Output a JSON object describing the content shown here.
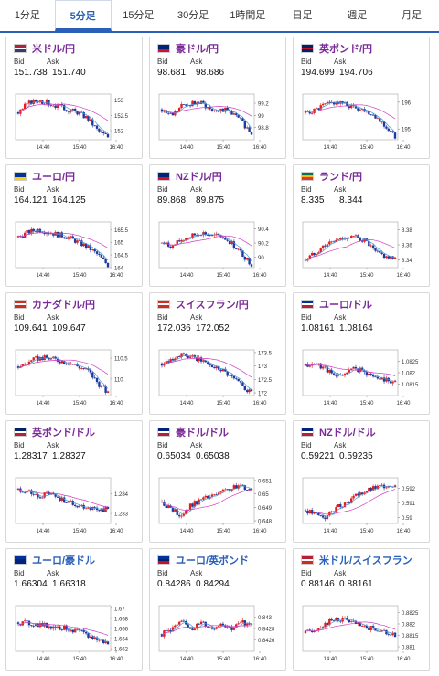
{
  "tabs": [
    {
      "label": "1分足",
      "active": false
    },
    {
      "label": "5分足",
      "active": true
    },
    {
      "label": "15分足",
      "active": false
    },
    {
      "label": "30分足",
      "active": false
    },
    {
      "label": "1時間足",
      "active": false
    },
    {
      "label": "日足",
      "active": false
    },
    {
      "label": "週足",
      "active": false
    },
    {
      "label": "月足",
      "active": false
    }
  ],
  "labels": {
    "bid": "Bid",
    "ask": "Ask"
  },
  "pairs": [
    {
      "name": "米ドル/円",
      "bid": "151.738",
      "ask": "151.740",
      "flag": [
        "#b22234",
        "#ffffff",
        "#3c3b6e"
      ],
      "color": "#7a2a98",
      "chart_data": {
        "type": "candlestick",
        "x_ticks": [
          "14:40",
          "15:40",
          "16:40"
        ],
        "y_ticks": [
          "153",
          "152.5",
          "152"
        ],
        "ylim": [
          151.7,
          153.2
        ],
        "trend": [
          152.6,
          152.9,
          153.0,
          152.9,
          152.8,
          152.7,
          152.6,
          152.4,
          152.0,
          151.8
        ]
      }
    },
    {
      "name": "豪ドル/円",
      "bid": "98.681",
      "ask": "98.686",
      "flag": [
        "#00247d",
        "#00247d",
        "#cf142b"
      ],
      "color": "#7a2a98",
      "chart_data": {
        "type": "candlestick",
        "x_ticks": [
          "14:40",
          "15:40",
          "16:40"
        ],
        "y_ticks": [
          "99.2",
          "99",
          "98.8"
        ],
        "ylim": [
          98.6,
          99.35
        ],
        "trend": [
          99.1,
          99.0,
          99.15,
          99.2,
          99.2,
          99.1,
          99.1,
          99.05,
          98.9,
          98.7
        ]
      }
    },
    {
      "name": "英ポンド/円",
      "bid": "194.699",
      "ask": "194.706",
      "flag": [
        "#012169",
        "#c8102e",
        "#012169"
      ],
      "color": "#7a2a98",
      "chart_data": {
        "type": "candlestick",
        "x_ticks": [
          "14:40",
          "15:40",
          "16:40"
        ],
        "y_ticks": [
          "196",
          "195"
        ],
        "ylim": [
          194.6,
          196.3
        ],
        "trend": [
          195.6,
          195.7,
          195.9,
          196.0,
          195.9,
          195.8,
          195.7,
          195.5,
          195.1,
          194.7
        ]
      }
    },
    {
      "name": "ユーロ/円",
      "bid": "164.121",
      "ask": "164.125",
      "flag": [
        "#003399",
        "#003399",
        "#ffcc00"
      ],
      "color": "#7a2a98",
      "chart_data": {
        "type": "candlestick",
        "x_ticks": [
          "14:40",
          "15:40",
          "16:40"
        ],
        "y_ticks": [
          "165.5",
          "165",
          "164.5",
          "164"
        ],
        "ylim": [
          164.0,
          165.8
        ],
        "trend": [
          165.2,
          165.4,
          165.5,
          165.4,
          165.3,
          165.2,
          165.0,
          164.8,
          164.5,
          164.1
        ]
      }
    },
    {
      "name": "NZドル/円",
      "bid": "89.868",
      "ask": "89.875",
      "flag": [
        "#00247d",
        "#00247d",
        "#cc142b"
      ],
      "color": "#7a2a98",
      "chart_data": {
        "type": "candlestick",
        "x_ticks": [
          "14:40",
          "15:40",
          "16:40"
        ],
        "y_ticks": [
          "90.4",
          "90.2",
          "90"
        ],
        "ylim": [
          89.85,
          90.5
        ],
        "trend": [
          90.2,
          90.15,
          90.25,
          90.3,
          90.35,
          90.3,
          90.3,
          90.2,
          90.05,
          89.9
        ]
      }
    },
    {
      "name": "ランド/円",
      "bid": "8.335",
      "ask": "8.344",
      "flag": [
        "#007a4d",
        "#ffb612",
        "#de3831"
      ],
      "color": "#7a2a98",
      "chart_data": {
        "type": "candlestick",
        "x_ticks": [
          "14:40",
          "15:40",
          "16:40"
        ],
        "y_ticks": [
          "8.38",
          "8.36",
          "8.34"
        ],
        "ylim": [
          8.33,
          8.39
        ],
        "trend": [
          8.34,
          8.35,
          8.36,
          8.365,
          8.37,
          8.37,
          8.365,
          8.35,
          8.345,
          8.34
        ]
      }
    },
    {
      "name": "カナダドル/円",
      "bid": "109.641",
      "ask": "109.647",
      "flag": [
        "#d52b1e",
        "#ffffff",
        "#d52b1e"
      ],
      "color": "#7a2a98",
      "chart_data": {
        "type": "candlestick",
        "x_ticks": [
          "14:40",
          "15:40",
          "16:40"
        ],
        "y_ticks": [
          "110.5",
          "110"
        ],
        "ylim": [
          109.6,
          110.7
        ],
        "trend": [
          110.3,
          110.4,
          110.5,
          110.5,
          110.45,
          110.4,
          110.3,
          110.2,
          109.9,
          109.65
        ]
      }
    },
    {
      "name": "スイスフラン/円",
      "bid": "172.036",
      "ask": "172.052",
      "flag": [
        "#d52b1e",
        "#ffffff",
        "#d52b1e"
      ],
      "color": "#7a2a98",
      "chart_data": {
        "type": "candlestick",
        "x_ticks": [
          "14:40",
          "15:40",
          "16:40"
        ],
        "y_ticks": [
          "173.5",
          "173",
          "172.5",
          "172"
        ],
        "ylim": [
          171.9,
          173.6
        ],
        "trend": [
          173.1,
          173.3,
          173.4,
          173.3,
          173.2,
          173.0,
          172.9,
          172.6,
          172.3,
          172.0
        ]
      }
    },
    {
      "name": "ユーロ/ドル",
      "bid": "1.08161",
      "ask": "1.08164",
      "flag": [
        "#003399",
        "#ffffff",
        "#b22234"
      ],
      "color": "#7a2a98",
      "chart_data": {
        "type": "candlestick",
        "x_ticks": [
          "14:40",
          "15:40",
          "16:40"
        ],
        "y_ticks": [
          "1.0825",
          "1.082",
          "1.0815"
        ],
        "ylim": [
          1.081,
          1.083
        ],
        "trend": [
          1.0823,
          1.0824,
          1.0822,
          1.0818,
          1.082,
          1.0822,
          1.082,
          1.0818,
          1.0817,
          1.0816
        ]
      }
    },
    {
      "name": "英ポンド/ドル",
      "bid": "1.28317",
      "ask": "1.28327",
      "flag": [
        "#012169",
        "#ffffff",
        "#b22234"
      ],
      "color": "#7a2a98",
      "chart_data": {
        "type": "candlestick",
        "x_ticks": [
          "14:40",
          "15:40",
          "16:40"
        ],
        "y_ticks": [
          "1.284",
          "1.283"
        ],
        "ylim": [
          1.2825,
          1.2848
        ],
        "trend": [
          1.2842,
          1.2841,
          1.2838,
          1.284,
          1.2838,
          1.2836,
          1.2834,
          1.2833,
          1.2832,
          1.2832
        ]
      }
    },
    {
      "name": "豪ドル/ドル",
      "bid": "0.65034",
      "ask": "0.65038",
      "flag": [
        "#00247d",
        "#ffffff",
        "#b22234"
      ],
      "color": "#7a2a98",
      "chart_data": {
        "type": "candlestick",
        "x_ticks": [
          "14:40",
          "15:40",
          "16:40"
        ],
        "y_ticks": [
          "0.651",
          "0.65",
          "0.649",
          "0.648"
        ],
        "ylim": [
          0.6478,
          0.6512
        ],
        "trend": [
          0.6494,
          0.6488,
          0.6484,
          0.6492,
          0.6496,
          0.6498,
          0.6501,
          0.6504,
          0.6506,
          0.6503
        ]
      }
    },
    {
      "name": "NZドル/ドル",
      "bid": "0.59221",
      "ask": "0.59235",
      "flag": [
        "#00247d",
        "#ffffff",
        "#b22234"
      ],
      "color": "#7a2a98",
      "chart_data": {
        "type": "candlestick",
        "x_ticks": [
          "14:40",
          "15:40",
          "16:40"
        ],
        "y_ticks": [
          "0.592",
          "0.591",
          "0.59"
        ],
        "ylim": [
          0.5896,
          0.5927
        ],
        "trend": [
          0.5905,
          0.5902,
          0.59,
          0.5906,
          0.591,
          0.5914,
          0.5918,
          0.592,
          0.5922,
          0.5922
        ]
      }
    },
    {
      "name": "ユーロ/豪ドル",
      "bid": "1.66304",
      "ask": "1.66318",
      "flag": [
        "#003399",
        "#00247d",
        "#00247d"
      ],
      "color": "#2a60b8",
      "chart_data": {
        "type": "candlestick",
        "x_ticks": [
          "14:40",
          "15:40",
          "16:40"
        ],
        "y_ticks": [
          "1.67",
          "1.668",
          "1.666",
          "1.664",
          "1.662"
        ],
        "ylim": [
          1.6615,
          1.6705
        ],
        "trend": [
          1.6672,
          1.667,
          1.6668,
          1.6665,
          1.6662,
          1.666,
          1.6655,
          1.6645,
          1.6638,
          1.663
        ]
      }
    },
    {
      "name": "ユーロ/英ポンド",
      "bid": "0.84286",
      "ask": "0.84294",
      "flag": [
        "#003399",
        "#012169",
        "#c8102e"
      ],
      "color": "#2a60b8",
      "chart_data": {
        "type": "candlestick",
        "x_ticks": [
          "14:40",
          "15:40",
          "16:40"
        ],
        "y_ticks": [
          "0.843",
          "0.8428",
          "0.8426"
        ],
        "ylim": [
          0.8424,
          0.8432
        ],
        "trend": [
          0.8427,
          0.8428,
          0.8429,
          0.8428,
          0.8429,
          0.8428,
          0.8429,
          0.8428,
          0.8429,
          0.8429
        ]
      }
    },
    {
      "name": "米ドル/スイスフラン",
      "bid": "0.88146",
      "ask": "0.88161",
      "flag": [
        "#b22234",
        "#ffffff",
        "#d52b1e"
      ],
      "color": "#2a60b8",
      "chart_data": {
        "type": "candlestick",
        "x_ticks": [
          "14:40",
          "15:40",
          "16:40"
        ],
        "y_ticks": [
          "0.8825",
          "0.882",
          "0.8815",
          "0.881"
        ],
        "ylim": [
          0.8808,
          0.8828
        ],
        "trend": [
          0.8816,
          0.8818,
          0.882,
          0.8822,
          0.8822,
          0.882,
          0.8818,
          0.8818,
          0.8816,
          0.8815
        ]
      }
    }
  ]
}
